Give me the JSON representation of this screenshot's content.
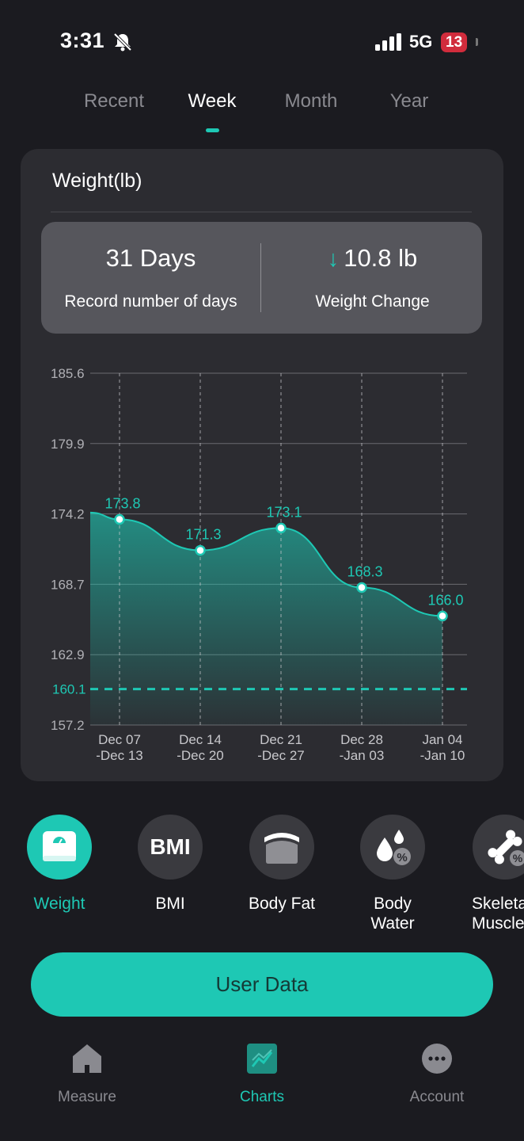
{
  "status_bar": {
    "time": "3:31",
    "network": "5G",
    "battery": "13"
  },
  "tabs": [
    {
      "label": "Recent",
      "active": false
    },
    {
      "label": "Week",
      "active": true
    },
    {
      "label": "Month",
      "active": false
    },
    {
      "label": "Year",
      "active": false
    }
  ],
  "card": {
    "title": "Weight(lb)",
    "summary": {
      "days_value": "31 Days",
      "days_label": "Record number of days",
      "change_value": "10.8 lb",
      "change_label": "Weight Change"
    }
  },
  "chart_data": {
    "type": "area",
    "x_ticks": [
      {
        "line1": "Dec 07",
        "line2": "-Dec 13"
      },
      {
        "line1": "Dec 14",
        "line2": "-Dec 20"
      },
      {
        "line1": "Dec 21",
        "line2": "-Dec 27"
      },
      {
        "line1": "Dec 28",
        "line2": "-Jan 03"
      },
      {
        "line1": "Jan 04",
        "line2": "-Jan 10"
      }
    ],
    "values": [
      173.8,
      171.3,
      173.1,
      168.3,
      166.0
    ],
    "value_labels": [
      "173.8",
      "171.3",
      "173.1",
      "168.3",
      "166.0"
    ],
    "y_ticks": [
      "185.6",
      "179.9",
      "174.2",
      "168.7",
      "162.9",
      "157.2"
    ],
    "ylim": [
      157.2,
      185.6
    ],
    "target": 160.1,
    "target_label": "160.1",
    "grid": true,
    "accent_color": "#1ec8b4"
  },
  "metrics": [
    {
      "label": "Weight",
      "icon": "scale-icon",
      "active": true
    },
    {
      "label": "BMI",
      "icon": "bmi-icon",
      "active": false
    },
    {
      "label": "Body Fat",
      "icon": "body-fat-icon",
      "active": false
    },
    {
      "label": "Body Water",
      "icon": "body-water-icon",
      "active": false
    },
    {
      "label": "Skeletal Muscle",
      "icon": "bone-icon",
      "active": false
    }
  ],
  "bmi_text": "BMI",
  "user_data_button": "User Data",
  "nav": [
    {
      "label": "Measure",
      "icon": "home-icon",
      "active": false
    },
    {
      "label": "Charts",
      "icon": "chart-icon",
      "active": true
    },
    {
      "label": "Account",
      "icon": "more-icon",
      "active": false
    }
  ],
  "colors": {
    "accent": "#1ec8b4",
    "background": "#1b1b20",
    "card": "#2c2c31"
  }
}
